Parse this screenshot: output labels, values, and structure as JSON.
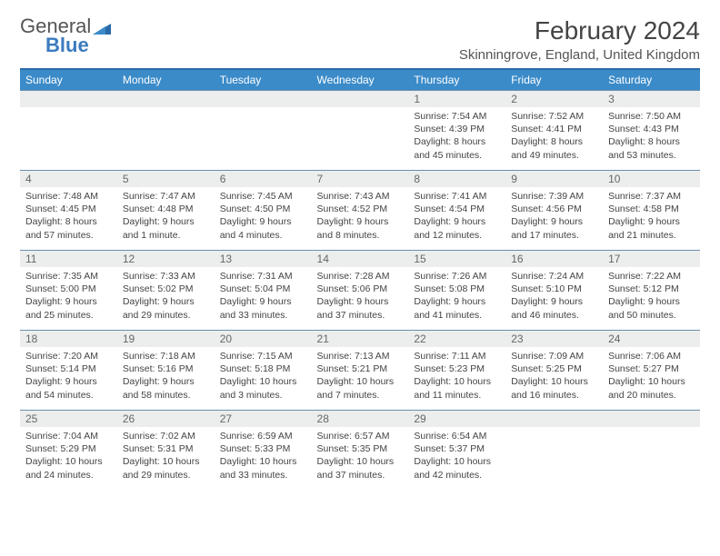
{
  "brand": {
    "text1": "General",
    "text2": "Blue"
  },
  "title": "February 2024",
  "location": "Skinningrove, England, United Kingdom",
  "colors": {
    "header_bg": "#3b8bc9",
    "border": "#6a8fae",
    "daynum_bg": "#eceeee",
    "brand_blue": "#3b7bbf"
  },
  "day_headers": [
    "Sunday",
    "Monday",
    "Tuesday",
    "Wednesday",
    "Thursday",
    "Friday",
    "Saturday"
  ],
  "weeks": [
    [
      {
        "n": "",
        "sr": "",
        "ss": "",
        "dl": ""
      },
      {
        "n": "",
        "sr": "",
        "ss": "",
        "dl": ""
      },
      {
        "n": "",
        "sr": "",
        "ss": "",
        "dl": ""
      },
      {
        "n": "",
        "sr": "",
        "ss": "",
        "dl": ""
      },
      {
        "n": "1",
        "sr": "Sunrise: 7:54 AM",
        "ss": "Sunset: 4:39 PM",
        "dl": "Daylight: 8 hours and 45 minutes."
      },
      {
        "n": "2",
        "sr": "Sunrise: 7:52 AM",
        "ss": "Sunset: 4:41 PM",
        "dl": "Daylight: 8 hours and 49 minutes."
      },
      {
        "n": "3",
        "sr": "Sunrise: 7:50 AM",
        "ss": "Sunset: 4:43 PM",
        "dl": "Daylight: 8 hours and 53 minutes."
      }
    ],
    [
      {
        "n": "4",
        "sr": "Sunrise: 7:48 AM",
        "ss": "Sunset: 4:45 PM",
        "dl": "Daylight: 8 hours and 57 minutes."
      },
      {
        "n": "5",
        "sr": "Sunrise: 7:47 AM",
        "ss": "Sunset: 4:48 PM",
        "dl": "Daylight: 9 hours and 1 minute."
      },
      {
        "n": "6",
        "sr": "Sunrise: 7:45 AM",
        "ss": "Sunset: 4:50 PM",
        "dl": "Daylight: 9 hours and 4 minutes."
      },
      {
        "n": "7",
        "sr": "Sunrise: 7:43 AM",
        "ss": "Sunset: 4:52 PM",
        "dl": "Daylight: 9 hours and 8 minutes."
      },
      {
        "n": "8",
        "sr": "Sunrise: 7:41 AM",
        "ss": "Sunset: 4:54 PM",
        "dl": "Daylight: 9 hours and 12 minutes."
      },
      {
        "n": "9",
        "sr": "Sunrise: 7:39 AM",
        "ss": "Sunset: 4:56 PM",
        "dl": "Daylight: 9 hours and 17 minutes."
      },
      {
        "n": "10",
        "sr": "Sunrise: 7:37 AM",
        "ss": "Sunset: 4:58 PM",
        "dl": "Daylight: 9 hours and 21 minutes."
      }
    ],
    [
      {
        "n": "11",
        "sr": "Sunrise: 7:35 AM",
        "ss": "Sunset: 5:00 PM",
        "dl": "Daylight: 9 hours and 25 minutes."
      },
      {
        "n": "12",
        "sr": "Sunrise: 7:33 AM",
        "ss": "Sunset: 5:02 PM",
        "dl": "Daylight: 9 hours and 29 minutes."
      },
      {
        "n": "13",
        "sr": "Sunrise: 7:31 AM",
        "ss": "Sunset: 5:04 PM",
        "dl": "Daylight: 9 hours and 33 minutes."
      },
      {
        "n": "14",
        "sr": "Sunrise: 7:28 AM",
        "ss": "Sunset: 5:06 PM",
        "dl": "Daylight: 9 hours and 37 minutes."
      },
      {
        "n": "15",
        "sr": "Sunrise: 7:26 AM",
        "ss": "Sunset: 5:08 PM",
        "dl": "Daylight: 9 hours and 41 minutes."
      },
      {
        "n": "16",
        "sr": "Sunrise: 7:24 AM",
        "ss": "Sunset: 5:10 PM",
        "dl": "Daylight: 9 hours and 46 minutes."
      },
      {
        "n": "17",
        "sr": "Sunrise: 7:22 AM",
        "ss": "Sunset: 5:12 PM",
        "dl": "Daylight: 9 hours and 50 minutes."
      }
    ],
    [
      {
        "n": "18",
        "sr": "Sunrise: 7:20 AM",
        "ss": "Sunset: 5:14 PM",
        "dl": "Daylight: 9 hours and 54 minutes."
      },
      {
        "n": "19",
        "sr": "Sunrise: 7:18 AM",
        "ss": "Sunset: 5:16 PM",
        "dl": "Daylight: 9 hours and 58 minutes."
      },
      {
        "n": "20",
        "sr": "Sunrise: 7:15 AM",
        "ss": "Sunset: 5:18 PM",
        "dl": "Daylight: 10 hours and 3 minutes."
      },
      {
        "n": "21",
        "sr": "Sunrise: 7:13 AM",
        "ss": "Sunset: 5:21 PM",
        "dl": "Daylight: 10 hours and 7 minutes."
      },
      {
        "n": "22",
        "sr": "Sunrise: 7:11 AM",
        "ss": "Sunset: 5:23 PM",
        "dl": "Daylight: 10 hours and 11 minutes."
      },
      {
        "n": "23",
        "sr": "Sunrise: 7:09 AM",
        "ss": "Sunset: 5:25 PM",
        "dl": "Daylight: 10 hours and 16 minutes."
      },
      {
        "n": "24",
        "sr": "Sunrise: 7:06 AM",
        "ss": "Sunset: 5:27 PM",
        "dl": "Daylight: 10 hours and 20 minutes."
      }
    ],
    [
      {
        "n": "25",
        "sr": "Sunrise: 7:04 AM",
        "ss": "Sunset: 5:29 PM",
        "dl": "Daylight: 10 hours and 24 minutes."
      },
      {
        "n": "26",
        "sr": "Sunrise: 7:02 AM",
        "ss": "Sunset: 5:31 PM",
        "dl": "Daylight: 10 hours and 29 minutes."
      },
      {
        "n": "27",
        "sr": "Sunrise: 6:59 AM",
        "ss": "Sunset: 5:33 PM",
        "dl": "Daylight: 10 hours and 33 minutes."
      },
      {
        "n": "28",
        "sr": "Sunrise: 6:57 AM",
        "ss": "Sunset: 5:35 PM",
        "dl": "Daylight: 10 hours and 37 minutes."
      },
      {
        "n": "29",
        "sr": "Sunrise: 6:54 AM",
        "ss": "Sunset: 5:37 PM",
        "dl": "Daylight: 10 hours and 42 minutes."
      },
      {
        "n": "",
        "sr": "",
        "ss": "",
        "dl": ""
      },
      {
        "n": "",
        "sr": "",
        "ss": "",
        "dl": ""
      }
    ]
  ]
}
